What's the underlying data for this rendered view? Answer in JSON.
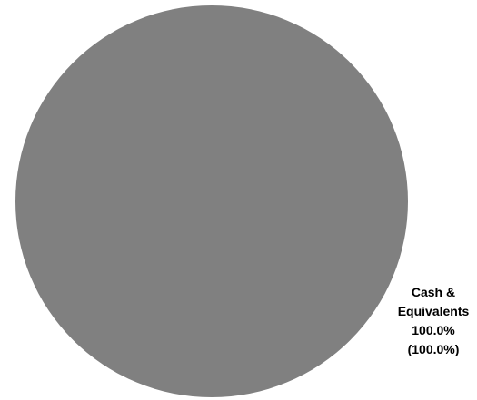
{
  "chart_data": {
    "type": "pie",
    "title": "",
    "slices": [
      {
        "label": "Cash & Equivalents",
        "label_lines": [
          "Cash &",
          "Equivalents"
        ],
        "value": 100.0,
        "percent_text": "100.0%",
        "secondary_text": "(100.0%)",
        "color": "#808080"
      }
    ]
  }
}
